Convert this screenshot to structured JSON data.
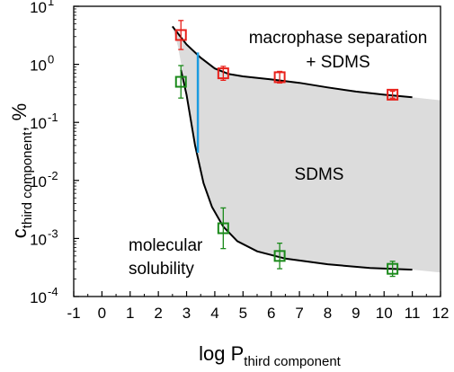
{
  "chart_data": {
    "type": "scatter",
    "title": "",
    "xlabel_main": "log P",
    "xlabel_sub": "third component",
    "ylabel_main": "c",
    "ylabel_sub": "third component",
    "ylabel_suffix": ", %",
    "xlim": [
      -1,
      12
    ],
    "ylim": [
      0.0001,
      10
    ],
    "yscale": "log",
    "grid": false,
    "x_ticks": [
      -1,
      0,
      1,
      2,
      3,
      4,
      5,
      6,
      7,
      8,
      9,
      10,
      11,
      12
    ],
    "x_tick_labels": [
      "-1",
      "0",
      "1",
      "2",
      "3",
      "4",
      "5",
      "6",
      "7",
      "8",
      "9",
      "10",
      "11",
      "12"
    ],
    "y_ticks": [
      0.0001,
      0.001,
      0.01,
      0.1,
      1,
      10
    ],
    "y_tick_labels": [
      {
        "base": "10",
        "exp": "-4"
      },
      {
        "base": "10",
        "exp": "-3"
      },
      {
        "base": "10",
        "exp": "-2"
      },
      {
        "base": "10",
        "exp": "-1"
      },
      {
        "base": "10",
        "exp": "0"
      },
      {
        "base": "10",
        "exp": "1"
      }
    ],
    "series": [
      {
        "color": "#e8211b",
        "marker": "open-square",
        "points": [
          {
            "x": 2.8,
            "y": 3.2,
            "err": 0.25
          },
          {
            "x": 4.3,
            "y": 0.7,
            "err": 0.12
          },
          {
            "x": 6.3,
            "y": 0.6,
            "err": 0.1
          },
          {
            "x": 10.3,
            "y": 0.3,
            "err": 0.06
          }
        ]
      },
      {
        "color": "#1b8a1b",
        "marker": "open-square",
        "points": [
          {
            "x": 2.8,
            "y": 0.5,
            "err": 0.28
          },
          {
            "x": 4.3,
            "y": 0.0015,
            "err": 0.35
          },
          {
            "x": 6.3,
            "y": 0.0005,
            "err": 0.22
          },
          {
            "x": 10.3,
            "y": 0.0003,
            "err": 0.13
          }
        ]
      }
    ],
    "upper_curve": [
      [
        2.5,
        4.5
      ],
      [
        3.0,
        2.2
      ],
      [
        3.5,
        1.3
      ],
      [
        4.0,
        0.85
      ],
      [
        4.5,
        0.68
      ],
      [
        5.0,
        0.62
      ],
      [
        6.0,
        0.55
      ],
      [
        7.0,
        0.48
      ],
      [
        8.0,
        0.4
      ],
      [
        9.0,
        0.34
      ],
      [
        10.0,
        0.3
      ],
      [
        11.0,
        0.27
      ]
    ],
    "lower_curve": [
      [
        2.8,
        0.8
      ],
      [
        3.0,
        0.3
      ],
      [
        3.3,
        0.04
      ],
      [
        3.6,
        0.009
      ],
      [
        3.9,
        0.0035
      ],
      [
        4.3,
        0.0016
      ],
      [
        4.8,
        0.0009
      ],
      [
        5.5,
        0.0006
      ],
      [
        6.5,
        0.00045
      ],
      [
        8.0,
        0.00036
      ],
      [
        9.5,
        0.00031
      ],
      [
        11.0,
        0.00029
      ]
    ],
    "shaded_region": {
      "color": "#dcdcdc",
      "top": [
        [
          2.5,
          4.5
        ],
        [
          3.0,
          2.2
        ],
        [
          3.5,
          1.3
        ],
        [
          4.0,
          0.85
        ],
        [
          4.5,
          0.68
        ],
        [
          5.0,
          0.62
        ],
        [
          6.0,
          0.55
        ],
        [
          7.0,
          0.48
        ],
        [
          8.0,
          0.4
        ],
        [
          9.0,
          0.34
        ],
        [
          10.0,
          0.3
        ],
        [
          11.0,
          0.27
        ],
        [
          12.0,
          0.24
        ]
      ],
      "bottom": [
        [
          12.0,
          0.00026
        ],
        [
          11.0,
          0.00029
        ],
        [
          9.5,
          0.00031
        ],
        [
          8.0,
          0.00036
        ],
        [
          6.5,
          0.00045
        ],
        [
          5.5,
          0.0006
        ],
        [
          4.8,
          0.0009
        ],
        [
          4.3,
          0.0016
        ],
        [
          3.9,
          0.0035
        ],
        [
          3.6,
          0.009
        ],
        [
          3.3,
          0.04
        ],
        [
          3.0,
          0.3
        ],
        [
          2.7,
          2.0
        ],
        [
          2.5,
          4.5
        ]
      ]
    },
    "vertical_line": {
      "x": 3.4,
      "y_from": 0.03,
      "y_to": 1.6,
      "color": "#1a9be0"
    },
    "annotations": {
      "macrophase": {
        "lines": [
          "macrophase separation",
          "+ SDMS"
        ]
      },
      "sdms": {
        "lines": [
          "SDMS"
        ]
      },
      "molecular": {
        "lines": [
          "molecular",
          "solubility"
        ]
      }
    }
  }
}
